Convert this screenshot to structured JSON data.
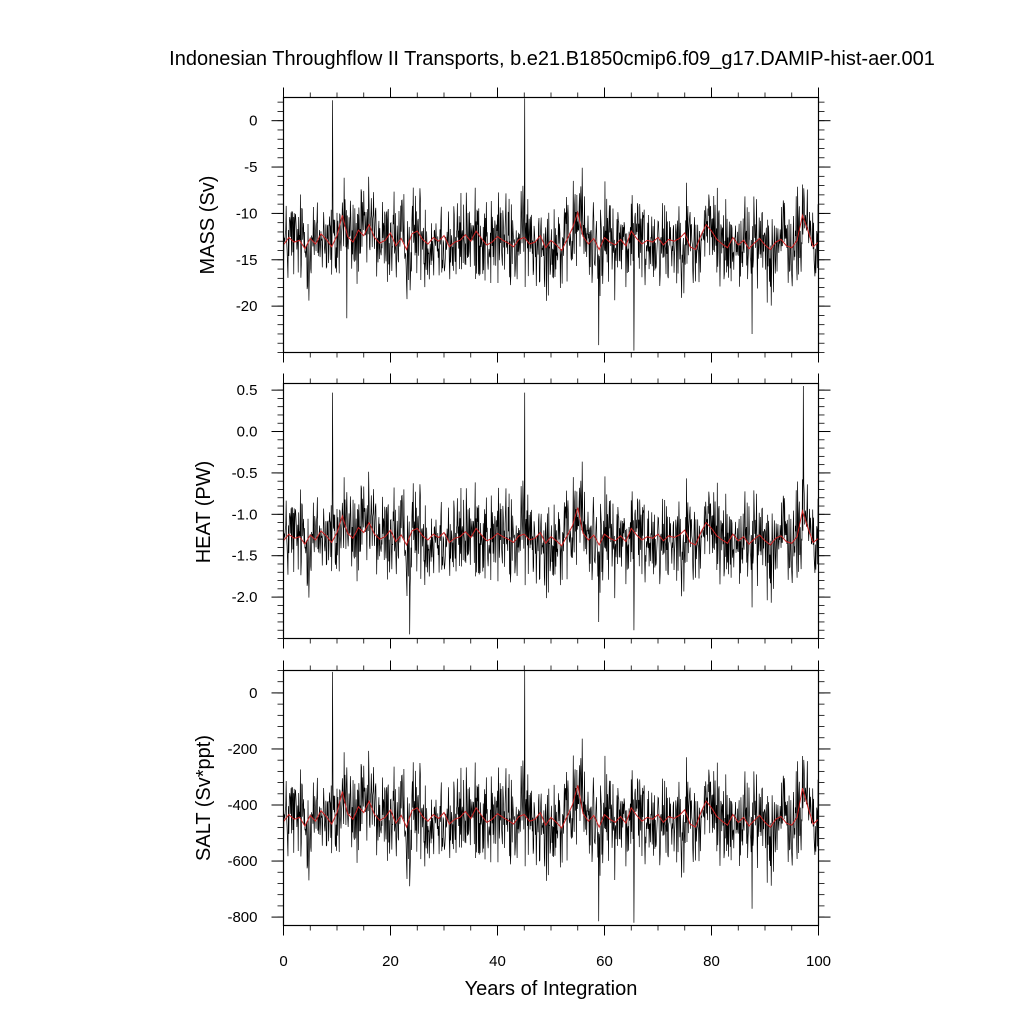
{
  "chart_data": {
    "type": "line",
    "title": "Indonesian Throughflow II Transports, b.e21.B1850cmip6.f09_g17.DAMIP-hist-aer.001",
    "xlabel": "Years of Integration",
    "xlim": [
      0,
      100
    ],
    "x_ticks": [
      0,
      20,
      40,
      60,
      80,
      100
    ],
    "x_tick_labels": [
      "0",
      "20",
      "40",
      "60",
      "80",
      "100"
    ],
    "colors": {
      "monthly": "#000000",
      "annual": "#cc2222"
    },
    "panels": [
      {
        "ylabel": "MASS (Sv)",
        "ylim": [
          -25,
          2.5
        ],
        "y_ticks": [
          0,
          -5,
          -10,
          -15,
          -20
        ],
        "y_tick_labels": [
          "0",
          "-5",
          "-10",
          "-15",
          "-20"
        ],
        "series": [
          {
            "role": "monthly",
            "mean": -13.2,
            "amplitude": 2.6,
            "extremes": [
              [
                9.2,
                2.2
              ],
              [
                45.1,
                2.4
              ],
              [
                58.9,
                -24.2
              ],
              [
                65.5,
                -24.8
              ],
              [
                11.8,
                -21.3
              ],
              [
                87.6,
                -23
              ]
            ]
          },
          {
            "role": "annual",
            "values": [
              -13.4,
              -12.6,
              -13.1,
              -12.9,
              -13.8,
              -12.7,
              -13.3,
              -12.2,
              -12.8,
              -13.6,
              -12.4,
              -10.2,
              -12.5,
              -13.1,
              -11.8,
              -12.4,
              -11.2,
              -12.6,
              -13.2,
              -12.9,
              -12.1,
              -13.5,
              -12.7,
              -13.9,
              -12.2,
              -11.9,
              -12.8,
              -13.3,
              -12.6,
              -13.0,
              -12.4,
              -13.6,
              -13.1,
              -12.9,
              -12.3,
              -13.0,
              -11.9,
              -12.7,
              -13.4,
              -13.1,
              -12.5,
              -12.9,
              -13.2,
              -13.6,
              -12.8,
              -12.6,
              -13.3,
              -13.1,
              -12.4,
              -13.7,
              -12.9,
              -13.4,
              -14.0,
              -12.8,
              -11.6,
              -9.9,
              -12.5,
              -13.3,
              -12.7,
              -13.9,
              -12.6,
              -13.1,
              -13.4,
              -12.8,
              -13.5,
              -11.9,
              -12.7,
              -13.3,
              -12.9,
              -13.1,
              -12.6,
              -13.4,
              -12.8,
              -13.0,
              -12.7,
              -12.1,
              -13.6,
              -13.9,
              -12.4,
              -11.2,
              -11.9,
              -12.8,
              -13.3,
              -13.7,
              -12.6,
              -13.4,
              -12.9,
              -13.8,
              -13.2,
              -12.7,
              -13.4,
              -13.9,
              -13.1,
              -12.8,
              -13.5,
              -13.7,
              -12.9,
              -10.2,
              -11.8,
              -13.6,
              -13.1
            ]
          }
        ]
      },
      {
        "ylabel": "HEAT (PW)",
        "ylim": [
          -2.5,
          0.58
        ],
        "y_ticks": [
          0.5,
          0.0,
          -0.5,
          -1.0,
          -1.5,
          -2.0
        ],
        "y_tick_labels": [
          "0.5",
          "0.0",
          "-0.5",
          "-1.0",
          "-1.5",
          "-2.0"
        ],
        "series": [
          {
            "role": "monthly",
            "mean": -1.3,
            "amplitude": 0.3,
            "extremes": [
              [
                9.2,
                0.47
              ],
              [
                45.1,
                0.47
              ],
              [
                23.6,
                -2.45
              ],
              [
                65.5,
                -2.4
              ],
              [
                97.2,
                0.55
              ],
              [
                58.9,
                -2.3
              ]
            ]
          },
          {
            "role": "annual",
            "values": [
              -1.32,
              -1.24,
              -1.29,
              -1.27,
              -1.36,
              -1.25,
              -1.31,
              -1.2,
              -1.26,
              -1.34,
              -1.22,
              -1.02,
              -1.23,
              -1.29,
              -1.16,
              -1.22,
              -1.1,
              -1.24,
              -1.3,
              -1.27,
              -1.19,
              -1.33,
              -1.25,
              -1.37,
              -1.2,
              -1.17,
              -1.26,
              -1.31,
              -1.24,
              -1.28,
              -1.22,
              -1.34,
              -1.29,
              -1.27,
              -1.21,
              -1.28,
              -1.17,
              -1.25,
              -1.32,
              -1.29,
              -1.23,
              -1.27,
              -1.3,
              -1.34,
              -1.26,
              -1.24,
              -1.31,
              -1.29,
              -1.22,
              -1.35,
              -1.27,
              -1.32,
              -1.38,
              -1.26,
              -1.14,
              -0.92,
              -1.23,
              -1.31,
              -1.25,
              -1.37,
              -1.24,
              -1.29,
              -1.32,
              -1.26,
              -1.33,
              -1.17,
              -1.25,
              -1.31,
              -1.27,
              -1.29,
              -1.24,
              -1.32,
              -1.26,
              -1.28,
              -1.25,
              -1.19,
              -1.34,
              -1.37,
              -1.22,
              -1.1,
              -1.17,
              -1.26,
              -1.31,
              -1.35,
              -1.24,
              -1.32,
              -1.27,
              -1.36,
              -1.3,
              -1.25,
              -1.32,
              -1.37,
              -1.29,
              -1.26,
              -1.33,
              -1.35,
              -1.27,
              -0.96,
              -1.16,
              -1.34,
              -1.29
            ]
          }
        ]
      },
      {
        "ylabel": "SALT (Sv*ppt)",
        "ylim": [
          -830,
          80
        ],
        "y_ticks": [
          0,
          -200,
          -400,
          -600,
          -800
        ],
        "y_tick_labels": [
          "0",
          "-200",
          "-400",
          "-600",
          "-800"
        ],
        "series": [
          {
            "role": "monthly",
            "mean": -455,
            "amplitude": 90,
            "extremes": [
              [
                9.2,
                75
              ],
              [
                45.1,
                78
              ],
              [
                58.9,
                -815
              ],
              [
                65.5,
                -820
              ],
              [
                87.6,
                -770
              ],
              [
                23.6,
                -690
              ]
            ]
          },
          {
            "role": "annual",
            "values": [
              -460,
              -434,
              -451,
              -444,
              -475,
              -437,
              -458,
              -420,
              -441,
              -468,
              -427,
              -352,
              -431,
              -451,
              -406,
              -427,
              -386,
              -434,
              -455,
              -444,
              -417,
              -465,
              -437,
              -479,
              -420,
              -410,
              -441,
              -458,
              -434,
              -448,
              -427,
              -468,
              -451,
              -444,
              -423,
              -448,
              -410,
              -437,
              -462,
              -451,
              -431,
              -444,
              -455,
              -468,
              -441,
              -434,
              -458,
              -451,
              -427,
              -472,
              -444,
              -462,
              -482,
              -441,
              -400,
              -330,
              -431,
              -458,
              -437,
              -479,
              -434,
              -451,
              -462,
              -441,
              -465,
              -410,
              -437,
              -458,
              -444,
              -451,
              -434,
              -462,
              -441,
              -448,
              -437,
              -417,
              -468,
              -479,
              -427,
              -386,
              -410,
              -441,
              -458,
              -472,
              -434,
              -462,
              -444,
              -475,
              -455,
              -437,
              -462,
              -479,
              -451,
              -441,
              -465,
              -472,
              -444,
              -340,
              -406,
              -468,
              -451
            ]
          }
        ]
      }
    ]
  }
}
